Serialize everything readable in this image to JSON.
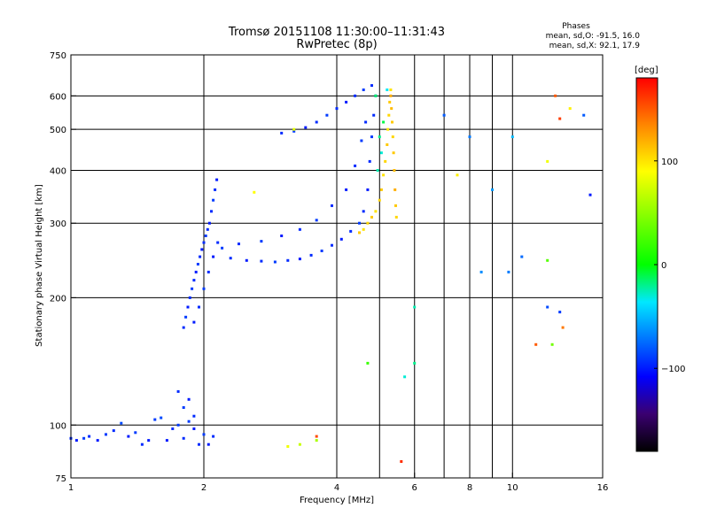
{
  "header": {
    "title": "Tromsø 20151108 11:30:00–11:31:43",
    "subtitle": "RwPretec (8p)"
  },
  "phases": {
    "label": "Phases",
    "line_o": "mean, sd,O: -91.5, 16.0",
    "line_x": "mean, sd,X:  92.1, 17.9"
  },
  "colorbar": {
    "label": "[deg]",
    "min": -180,
    "max": 180,
    "ticks": [
      {
        "value": 100,
        "label": "100"
      },
      {
        "value": 0,
        "label": "0"
      },
      {
        "value": -100,
        "label": "−100"
      }
    ]
  },
  "chart_data": {
    "type": "scatter",
    "title": "Tromsø 20151108 11:30:00–11:31:43",
    "subtitle": "RwPretec (8p)",
    "xlabel": "Frequency [MHz]",
    "ylabel": "Stationary phase Virtual Height [km]",
    "x_scale": "log",
    "y_scale": "log",
    "xlim": [
      1,
      16
    ],
    "ylim": [
      75,
      750
    ],
    "grid": true,
    "x_ticks": [
      {
        "value": 1,
        "label": "1",
        "grid": false
      },
      {
        "value": 2,
        "label": "2",
        "grid": true
      },
      {
        "value": 4,
        "label": "4",
        "grid": true
      },
      {
        "value": 6,
        "label": "6",
        "grid": true
      },
      {
        "value": 8,
        "label": "8",
        "grid": true
      },
      {
        "value": 10,
        "label": "10",
        "grid": true
      },
      {
        "value": 16,
        "label": "16",
        "grid": false
      }
    ],
    "x_grid_extra": [
      5,
      7,
      9
    ],
    "y_ticks": [
      {
        "value": 75,
        "label": "75",
        "grid": false
      },
      {
        "value": 100,
        "label": "100",
        "grid": true
      },
      {
        "value": 200,
        "label": "200",
        "grid": true
      },
      {
        "value": 300,
        "label": "300",
        "grid": true
      },
      {
        "value": 400,
        "label": "400",
        "grid": true
      },
      {
        "value": 500,
        "label": "500",
        "grid": true
      },
      {
        "value": 600,
        "label": "600",
        "grid": true
      },
      {
        "value": 750,
        "label": "750",
        "grid": false
      }
    ],
    "color_scale": {
      "label": "[deg]",
      "min": -180,
      "max": 180
    },
    "series": [
      {
        "points": [
          [
            1.0,
            93,
            -95
          ],
          [
            1.03,
            92,
            -100
          ],
          [
            1.07,
            93,
            -90
          ],
          [
            1.1,
            94,
            -95
          ],
          [
            1.15,
            92,
            -100
          ],
          [
            1.2,
            95,
            -90
          ],
          [
            1.25,
            97,
            -95
          ],
          [
            1.3,
            101,
            -85
          ],
          [
            1.35,
            94,
            -100
          ],
          [
            1.4,
            96,
            -90
          ],
          [
            1.45,
            90,
            -95
          ],
          [
            1.5,
            92,
            -100
          ],
          [
            1.55,
            103,
            -90
          ],
          [
            1.6,
            104,
            -85
          ],
          [
            1.65,
            92,
            -100
          ],
          [
            1.7,
            98,
            -95
          ],
          [
            1.75,
            100,
            -90
          ],
          [
            1.8,
            93,
            -95
          ],
          [
            1.85,
            102,
            -90
          ],
          [
            1.9,
            98,
            -100
          ],
          [
            1.95,
            90,
            -95
          ],
          [
            2.0,
            95,
            -90
          ],
          [
            2.05,
            90,
            -100
          ],
          [
            2.1,
            94,
            -95
          ],
          [
            1.75,
            120,
            -95
          ],
          [
            1.8,
            110,
            -90
          ],
          [
            1.85,
            115,
            -100
          ],
          [
            1.9,
            105,
            -95
          ],
          [
            1.8,
            170,
            -95
          ],
          [
            1.82,
            180,
            -90
          ],
          [
            1.84,
            190,
            -100
          ],
          [
            1.86,
            200,
            -95
          ],
          [
            1.88,
            210,
            -90
          ],
          [
            1.9,
            220,
            -95
          ],
          [
            1.92,
            230,
            -100
          ],
          [
            1.94,
            240,
            -90
          ],
          [
            1.96,
            250,
            -95
          ],
          [
            1.98,
            260,
            -100
          ],
          [
            2.0,
            270,
            -95
          ],
          [
            2.02,
            280,
            -90
          ],
          [
            2.04,
            290,
            -95
          ],
          [
            2.06,
            300,
            -100
          ],
          [
            2.08,
            320,
            -95
          ],
          [
            2.1,
            340,
            -90
          ],
          [
            2.12,
            360,
            -95
          ],
          [
            2.14,
            380,
            -100
          ],
          [
            1.9,
            175,
            -100
          ],
          [
            1.95,
            190,
            -95
          ],
          [
            2.0,
            210,
            -90
          ],
          [
            2.05,
            230,
            -95
          ],
          [
            2.1,
            250,
            -100
          ],
          [
            2.15,
            270,
            -95
          ],
          [
            2.2,
            262,
            -90
          ],
          [
            2.3,
            248,
            -95
          ],
          [
            2.5,
            245,
            -100
          ],
          [
            2.7,
            244,
            -95
          ],
          [
            2.9,
            243,
            -90
          ],
          [
            3.1,
            245,
            -95
          ],
          [
            3.3,
            247,
            -100
          ],
          [
            3.5,
            252,
            -95
          ],
          [
            3.7,
            258,
            -90
          ],
          [
            3.9,
            266,
            -95
          ],
          [
            4.1,
            275,
            -100
          ],
          [
            4.3,
            287,
            -95
          ],
          [
            4.5,
            300,
            -90
          ],
          [
            4.6,
            320,
            -95
          ],
          [
            4.7,
            360,
            -100
          ],
          [
            4.75,
            420,
            -95
          ],
          [
            4.8,
            480,
            -90
          ],
          [
            4.85,
            540,
            -95
          ],
          [
            4.9,
            600,
            -100
          ],
          [
            2.4,
            268,
            -95
          ],
          [
            2.7,
            272,
            -90
          ],
          [
            3.0,
            280,
            -100
          ],
          [
            3.3,
            290,
            -95
          ],
          [
            3.6,
            305,
            -90
          ],
          [
            3.9,
            330,
            -95
          ],
          [
            4.2,
            360,
            -100
          ],
          [
            4.4,
            410,
            -95
          ],
          [
            4.55,
            470,
            -90
          ],
          [
            4.65,
            520,
            -95
          ],
          [
            3.0,
            490,
            -95
          ],
          [
            3.2,
            495,
            -90
          ],
          [
            3.4,
            505,
            -100
          ],
          [
            3.6,
            520,
            -95
          ],
          [
            3.8,
            540,
            -90
          ],
          [
            4.0,
            560,
            -95
          ],
          [
            4.2,
            580,
            -100
          ],
          [
            4.4,
            600,
            -95
          ],
          [
            4.6,
            620,
            -90
          ],
          [
            4.8,
            635,
            -95
          ]
        ]
      },
      {
        "points": [
          [
            4.5,
            285,
            110
          ],
          [
            4.6,
            290,
            100
          ],
          [
            4.7,
            300,
            105
          ],
          [
            4.8,
            310,
            110
          ],
          [
            4.9,
            320,
            100
          ],
          [
            5.0,
            340,
            105
          ],
          [
            5.05,
            360,
            110
          ],
          [
            5.1,
            390,
            100
          ],
          [
            5.15,
            420,
            105
          ],
          [
            5.2,
            460,
            110
          ],
          [
            5.22,
            500,
            100
          ],
          [
            5.25,
            540,
            105
          ],
          [
            5.27,
            580,
            110
          ],
          [
            5.3,
            620,
            100
          ],
          [
            5.3,
            600,
            120
          ],
          [
            5.32,
            560,
            115
          ],
          [
            5.34,
            520,
            110
          ],
          [
            5.36,
            480,
            105
          ],
          [
            5.38,
            440,
            110
          ],
          [
            5.4,
            400,
            115
          ],
          [
            5.42,
            360,
            120
          ],
          [
            5.44,
            330,
            110
          ],
          [
            5.46,
            310,
            105
          ]
        ]
      },
      {
        "points": [
          [
            5.0,
            480,
            -20
          ],
          [
            5.1,
            520,
            -10
          ],
          [
            5.05,
            440,
            -30
          ],
          [
            4.95,
            400,
            -25
          ],
          [
            4.9,
            600,
            -15
          ],
          [
            5.2,
            620,
            -35
          ],
          [
            6.0,
            190,
            -25
          ],
          [
            6.0,
            140,
            -20
          ],
          [
            5.7,
            130,
            -30
          ]
        ]
      },
      {
        "points": [
          [
            2.6,
            355,
            90
          ],
          [
            3.2,
            500,
            80
          ],
          [
            7.5,
            390,
            95
          ],
          [
            12.0,
            420,
            85
          ],
          [
            13.5,
            560,
            95
          ],
          [
            3.3,
            90,
            70
          ],
          [
            3.6,
            92,
            60
          ],
          [
            3.1,
            89,
            85
          ]
        ]
      },
      {
        "points": [
          [
            12.5,
            600,
            150
          ],
          [
            12.8,
            530,
            160
          ],
          [
            13.0,
            170,
            140
          ],
          [
            11.3,
            155,
            150
          ],
          [
            5.6,
            82,
            165
          ],
          [
            3.6,
            94,
            155
          ]
        ]
      },
      {
        "points": [
          [
            12.0,
            245,
            30
          ],
          [
            12.3,
            155,
            40
          ],
          [
            4.7,
            140,
            20
          ]
        ]
      },
      {
        "points": [
          [
            7.0,
            540,
            -80
          ],
          [
            8.0,
            480,
            -70
          ],
          [
            9.0,
            360,
            -60
          ],
          [
            10.0,
            480,
            -50
          ],
          [
            10.5,
            250,
            -75
          ],
          [
            12.0,
            190,
            -85
          ],
          [
            12.8,
            185,
            -90
          ],
          [
            15.0,
            350,
            -100
          ],
          [
            14.5,
            540,
            -80
          ],
          [
            9.8,
            230,
            -70
          ],
          [
            8.5,
            230,
            -65
          ]
        ]
      }
    ]
  }
}
